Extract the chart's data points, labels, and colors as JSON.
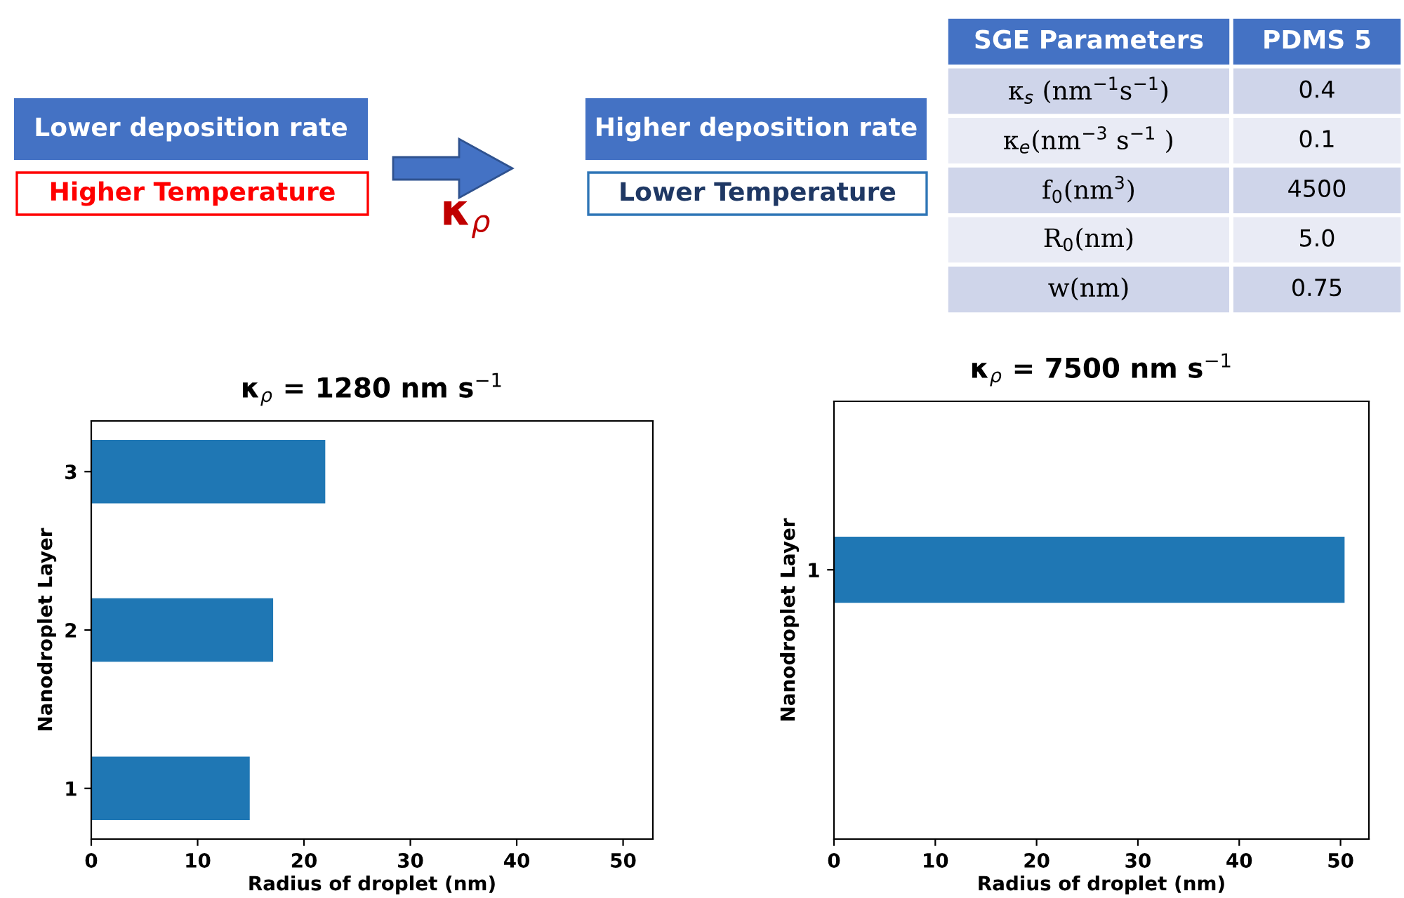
{
  "chart_data": [
    {
      "type": "other",
      "annotations": [
        "Lower deposition rate",
        "Higher Temperature",
        "κ$_{ρ}$",
        "Higher deposition rate",
        "Lower Temperature"
      ]
    },
    {
      "type": "other",
      "annotations": [
        "SGE Parameters",
        "PDMS 5",
        "κ$_{s}$ (nm$^{−1}$s$^{−1}$)",
        "0.4",
        "κ$_{e}$(nm$^{−3}$ s$^{−1}$ )",
        "0.1",
        "f$_{0}$(nm$^{3}$)",
        "4500",
        "R$_{0}$(nm)",
        "5.0",
        "w(nm)",
        "0.75"
      ]
    },
    {
      "type": "bar",
      "orientation": "horizontal",
      "title": "κ$_{ρ}$ = 1280 nm s$^{−1}$",
      "xlabel": "Radius of droplet (nm)",
      "ylabel": "Nanodroplet Layer",
      "categories": [
        "3",
        "2",
        "1"
      ],
      "values": [
        22.0,
        17.1,
        14.9
      ],
      "color": "#1f77b4",
      "xlim": [
        0,
        52.8
      ],
      "xticks": [
        0,
        10,
        20,
        30,
        40,
        50
      ],
      "grid": false
    },
    {
      "type": "bar",
      "orientation": "horizontal",
      "title": "κ$_{ρ}$ = 7500 nm s$^{−1}$",
      "xlabel": "Radius of droplet (nm)",
      "ylabel": "Nanodroplet Layer",
      "categories": [
        "1"
      ],
      "values": [
        50.4
      ],
      "color": "#1f77b4",
      "xlim": [
        0,
        52.8
      ],
      "xticks": [
        0,
        10,
        20,
        30,
        40,
        50
      ],
      "grid": false
    }
  ]
}
